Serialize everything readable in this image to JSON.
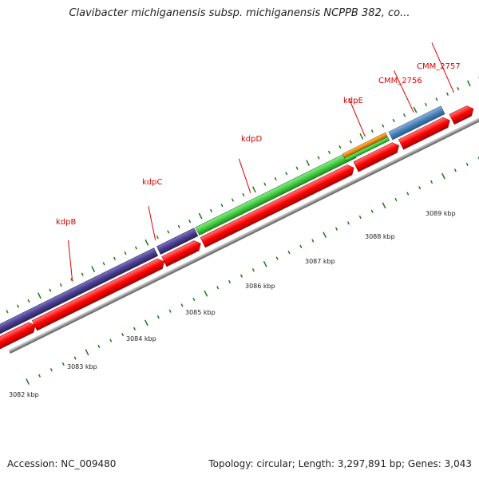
{
  "title": "Clavibacter michiganensis subsp. michiganensis NCPPB 382, co...",
  "footer": {
    "accession": "Accession: NC_009480",
    "stats": "Topology: circular; Length: 3,297,891 bp; Genes: 3,043"
  },
  "colors": {
    "label_red": "#dd0000",
    "cds_red": "#ff0000",
    "tick_green": "#1a7a1a",
    "backbone_grey": "#888888",
    "kdpB_purple": "#4a3f8c",
    "kdpD_green": "#44cc44",
    "kdpE_orange": "#f08c00",
    "CMM_2757_blue": "#4a80b8"
  },
  "gene_labels": [
    {
      "name": "kdpB",
      "color": "#dd0000"
    },
    {
      "name": "kdpC",
      "color": "#dd0000"
    },
    {
      "name": "kdpD",
      "color": "#dd0000"
    },
    {
      "name": "kdpE",
      "color": "#dd0000"
    },
    {
      "name": "CMM_2756",
      "color": "#dd0000"
    },
    {
      "name": "CMM_2757",
      "color": "#dd0000"
    }
  ],
  "kbp_labels": [
    "3082 kbp",
    "3083 kbp",
    "3084 kbp",
    "3085 kbp",
    "3086 kbp",
    "3087 kbp",
    "3088 kbp",
    "3089 kbp"
  ]
}
